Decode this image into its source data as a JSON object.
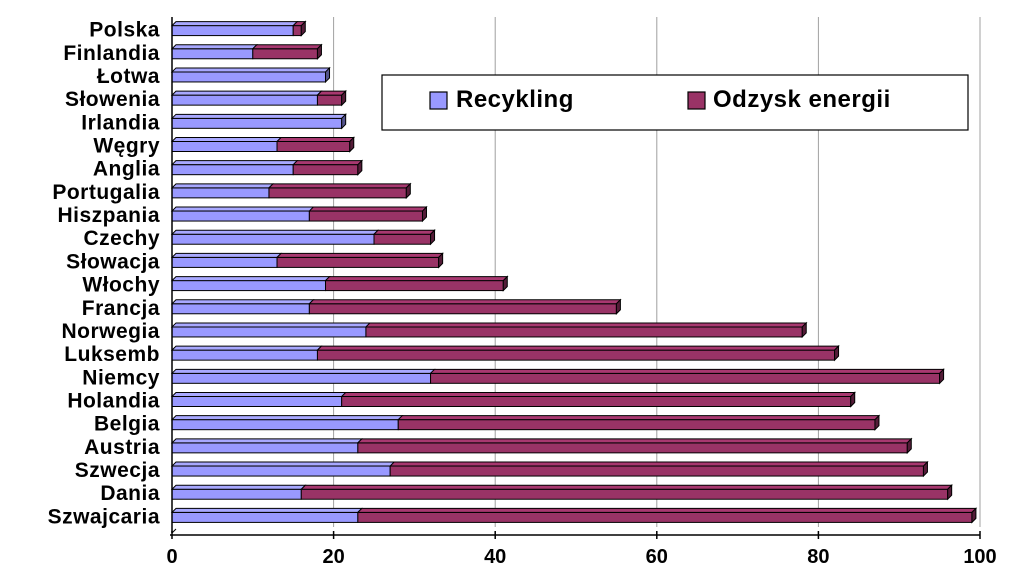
{
  "chart_data": {
    "type": "bar",
    "orientation": "horizontal",
    "stacked": true,
    "categories": [
      "Polska",
      "Finlandia",
      "Łotwa",
      "Słowenia",
      "Irlandia",
      "Węgry",
      "Anglia",
      "Portugalia",
      "Hiszpania",
      "Czechy",
      "Słowacja",
      "Włochy",
      "Francja",
      "Norwegia",
      "Luksemb",
      "Niemcy",
      "Holandia",
      "Belgia",
      "Austria",
      "Szwecja",
      "Dania",
      "Szwajcaria"
    ],
    "series": [
      {
        "name": "Recykling",
        "color": "#9999ff",
        "values": [
          15,
          10,
          19,
          18,
          21,
          13,
          15,
          12,
          17,
          25,
          13,
          19,
          17,
          24,
          18,
          32,
          21,
          28,
          23,
          27,
          16,
          23
        ]
      },
      {
        "name": "Odzysk energii",
        "color": "#993366",
        "values": [
          1,
          8,
          0,
          3,
          0,
          9,
          8,
          17,
          14,
          7,
          20,
          22,
          38,
          54,
          64,
          63,
          63,
          59,
          68,
          66,
          80,
          76
        ]
      }
    ],
    "xlim": [
      0,
      100
    ],
    "xticks": [
      0,
      20,
      40,
      60,
      80,
      100
    ],
    "grid": true,
    "legend": "top-right"
  }
}
